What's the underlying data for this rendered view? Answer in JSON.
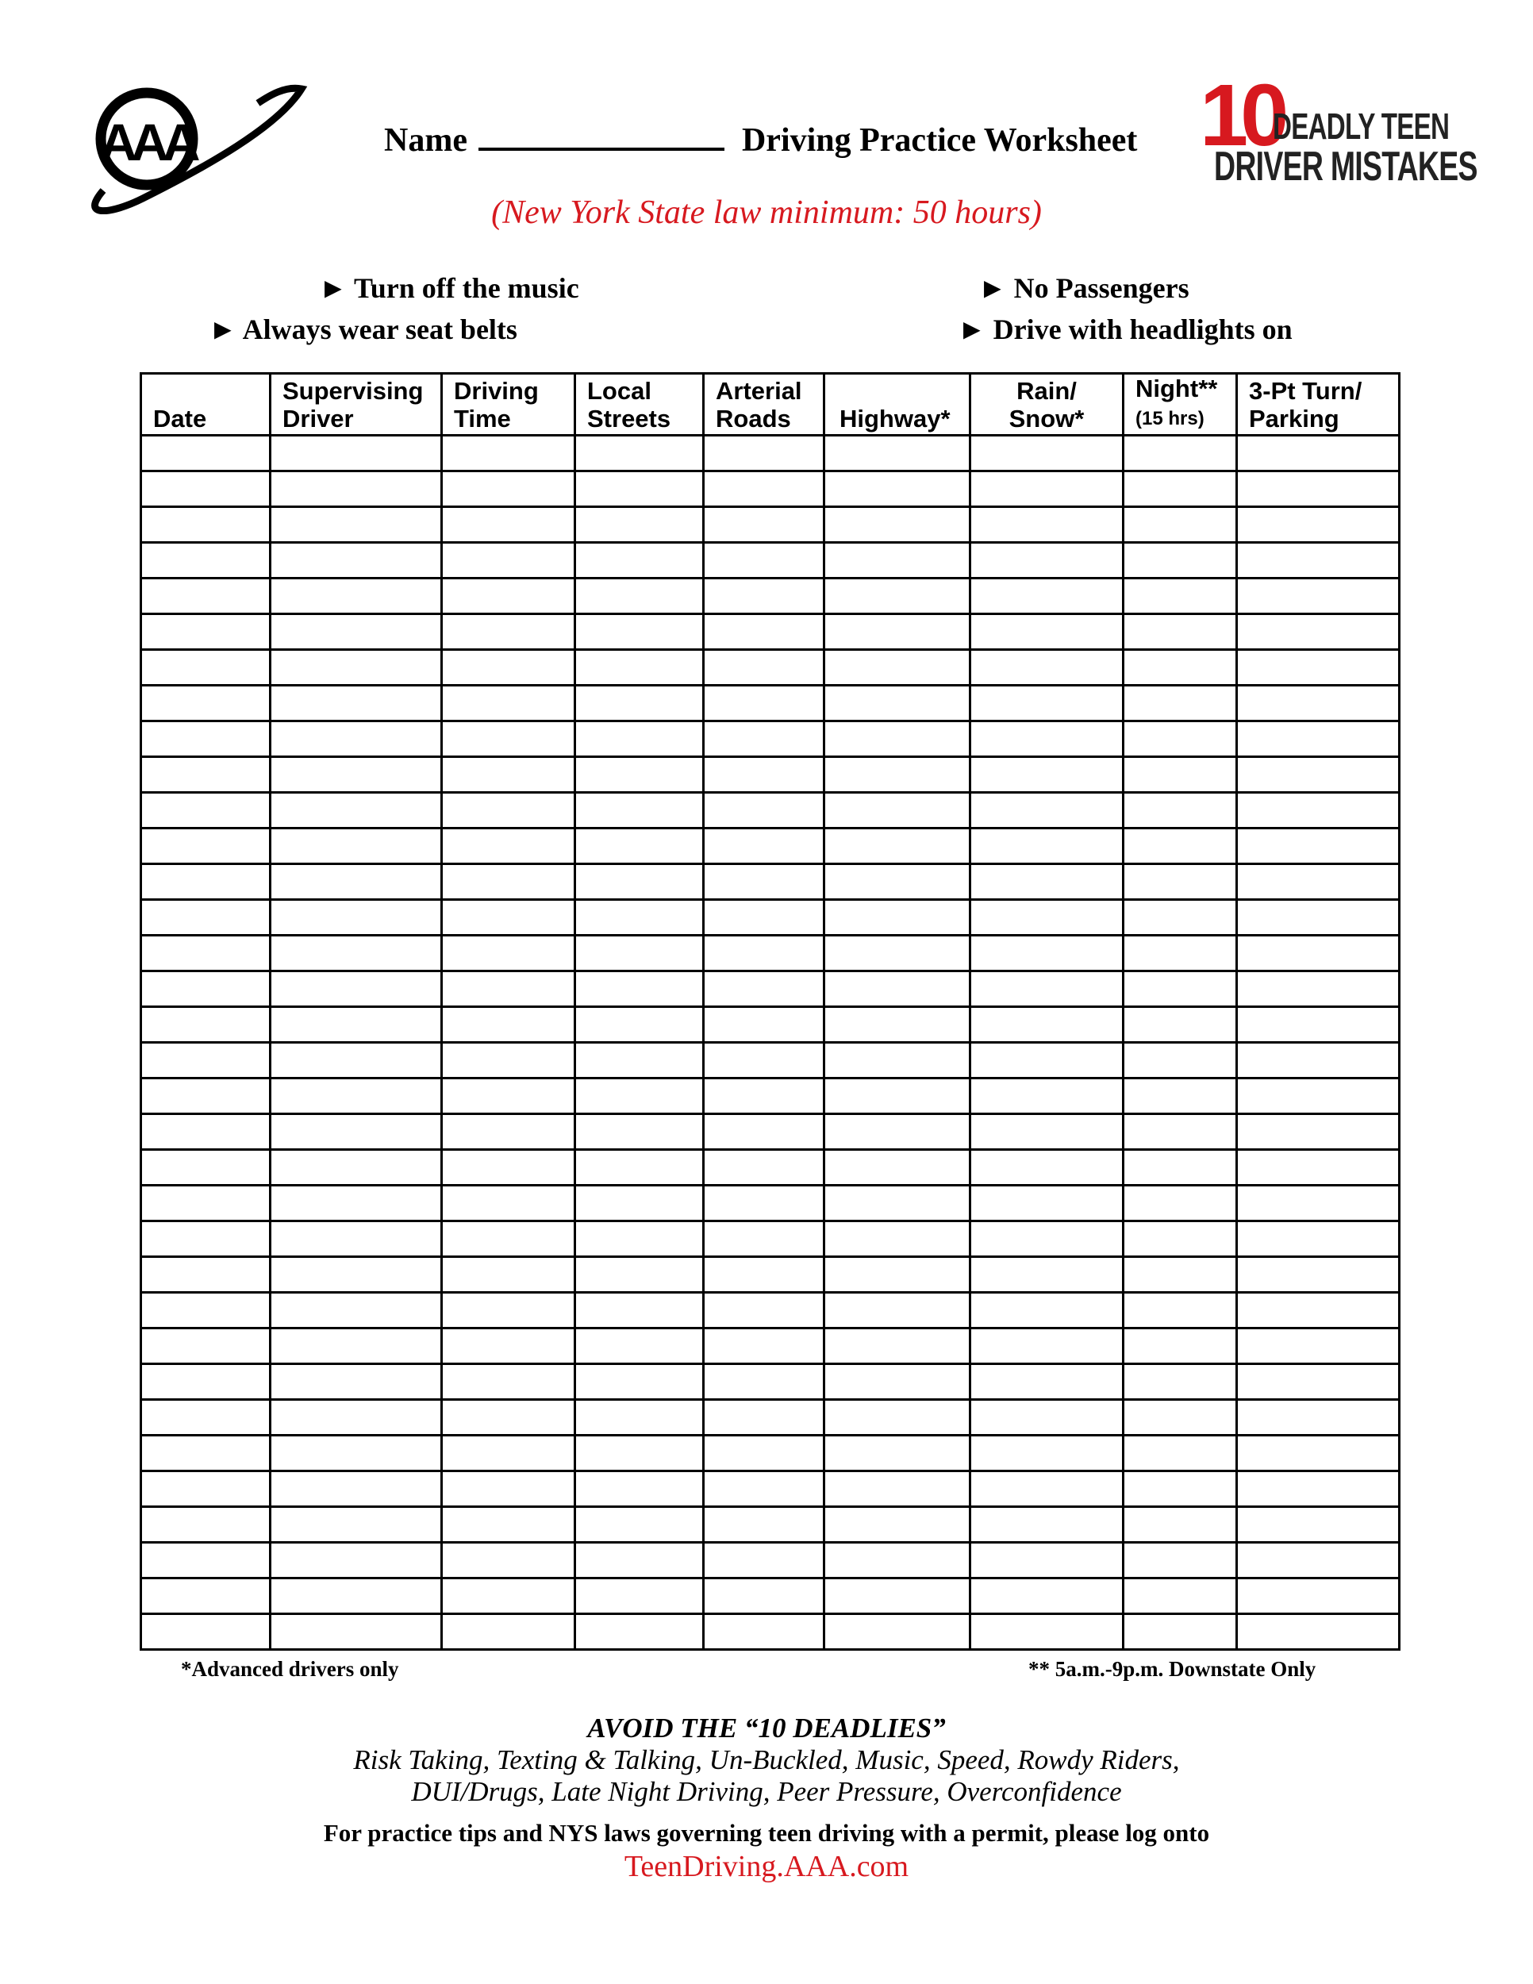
{
  "header": {
    "logo_left": "AAA",
    "logo_right": {
      "number": "10",
      "line1": "DEADLY TEEN",
      "line2": "DRIVER MISTAKES"
    },
    "name_label": "Name",
    "title": "Driving Practice Worksheet",
    "subtitle": "(New York State law minimum: 50 hours)"
  },
  "rules": [
    "► Turn off the music",
    "► No Passengers",
    "► Always wear seat belts",
    "► Drive with headlights on"
  ],
  "table": {
    "columns": [
      {
        "line1": "",
        "line2": "Date"
      },
      {
        "line1": "Supervising",
        "line2": "Driver"
      },
      {
        "line1": "Driving",
        "line2": "Time"
      },
      {
        "line1": "Local",
        "line2": "Streets"
      },
      {
        "line1": "Arterial",
        "line2": "Roads"
      },
      {
        "line1": "",
        "line2": "Highway*"
      },
      {
        "line1": "Rain/",
        "line2": "Snow*"
      },
      {
        "line1": "Night**",
        "line2": "(15 hrs)"
      },
      {
        "line1": "3-Pt Turn/",
        "line2": "Parking"
      }
    ],
    "empty_rows": 34
  },
  "footnotes": {
    "left": "*Advanced drivers only",
    "right": "** 5a.m.-9p.m. Downstate Only"
  },
  "footer": {
    "heading": "AVOID THE “10 DEADLIES”",
    "list_line1": "Risk Taking, Texting & Talking, Un-Buckled, Music, Speed, Rowdy Riders,",
    "list_line2": "DUI/Drugs, Late Night Driving, Peer Pressure, Overconfidence",
    "info": "For practice tips and NYS laws governing teen driving with a permit, please log onto",
    "link": "TeenDriving.AAA.com"
  },
  "colors": {
    "accent_red": "#d7191f",
    "text": "#000000"
  }
}
